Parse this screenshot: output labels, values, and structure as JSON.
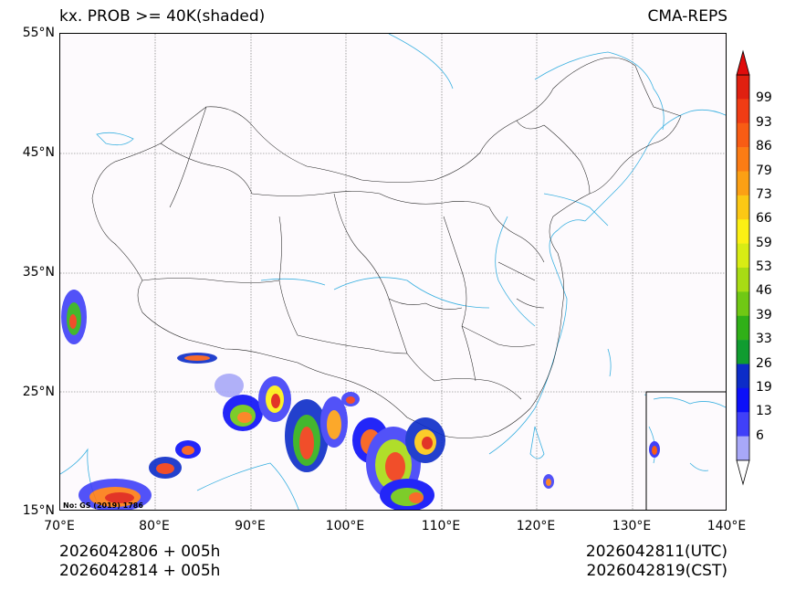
{
  "header": {
    "title": "kx. PROB >= 40K(shaded)",
    "source": "CMA-REPS"
  },
  "map": {
    "lat_labels": [
      "55°N",
      "45°N",
      "35°N",
      "25°N",
      "15°N"
    ],
    "lon_labels": [
      "70°E",
      "80°E",
      "90°E",
      "100°E",
      "110°E",
      "120°E",
      "130°E",
      "140°E"
    ],
    "lat_range": [
      15,
      55
    ],
    "lon_range": [
      70,
      140
    ],
    "review_note": "No: GS (2019) 1786"
  },
  "colorbar": {
    "labels": [
      "99",
      "93",
      "86",
      "79",
      "73",
      "66",
      "59",
      "53",
      "46",
      "39",
      "33",
      "26",
      "19",
      "13",
      "6"
    ],
    "colors": [
      "#e02010",
      "#f03c14",
      "#f85c14",
      "#fc7c14",
      "#fca014",
      "#fcc814",
      "#fcf014",
      "#d8ec14",
      "#a8dc14",
      "#70c814",
      "#30b018",
      "#109c30",
      "#0c2cc8",
      "#0c10f8",
      "#4040f8",
      "#a8a8f8"
    ],
    "over_color": "#e00c0c",
    "under_color": "#ffffff"
  },
  "footer": {
    "init_utc": "2026042806  +  005h",
    "init_cst": "2026042814  +  005h",
    "valid_utc": "2026042811(UTC)",
    "valid_cst": "2026042819(CST)"
  }
}
